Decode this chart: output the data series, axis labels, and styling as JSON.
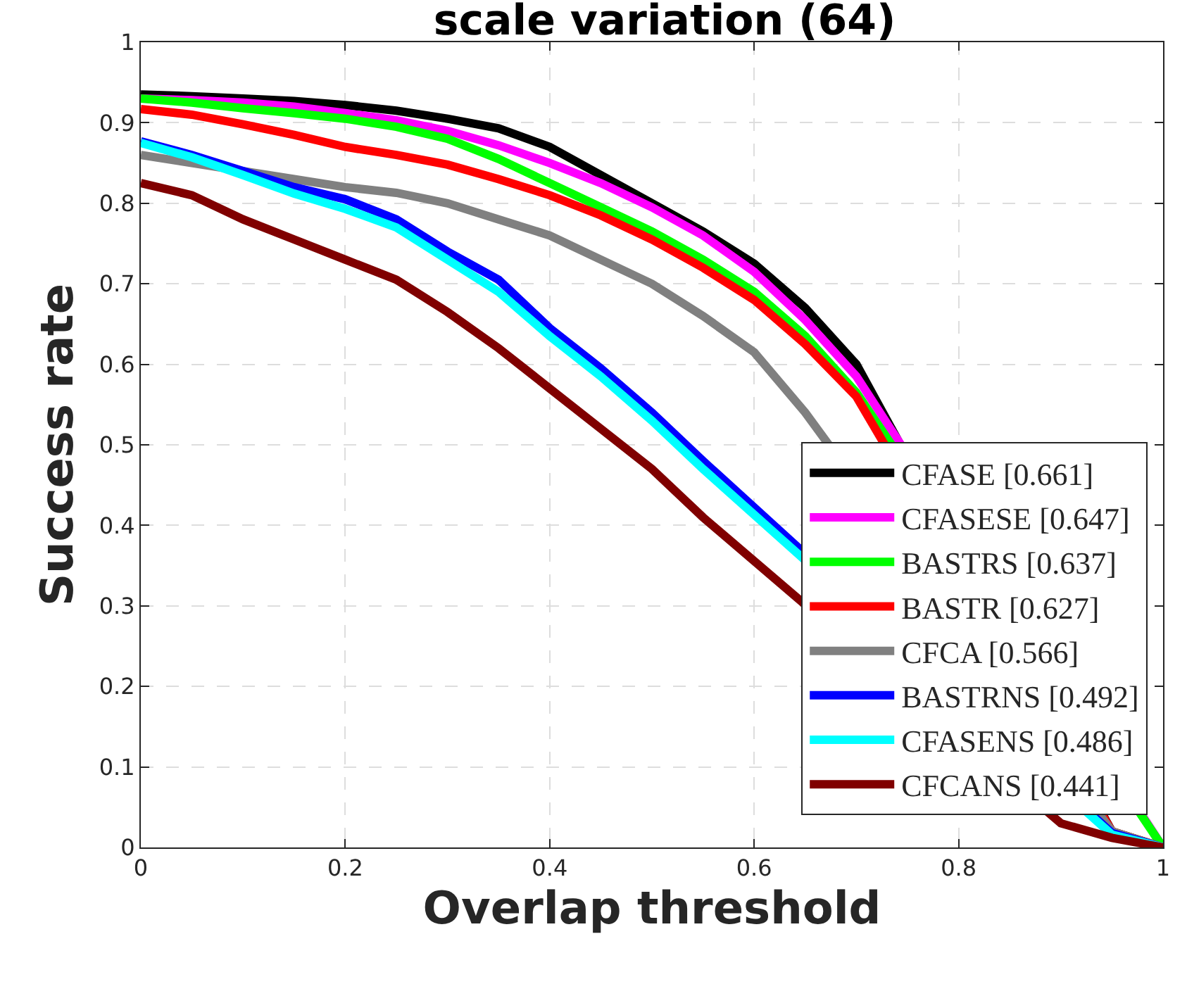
{
  "chart_data": {
    "type": "line",
    "title": "scale variation (64)",
    "xlabel": "Overlap threshold",
    "ylabel": "Success rate",
    "x": [
      0,
      0.05,
      0.1,
      0.15,
      0.2,
      0.25,
      0.3,
      0.35,
      0.4,
      0.45,
      0.5,
      0.55,
      0.6,
      0.65,
      0.7,
      0.75,
      0.8,
      0.85,
      0.9,
      0.95,
      1
    ],
    "xlim": [
      0,
      1
    ],
    "xticks": [
      0,
      0.2,
      0.4,
      0.6,
      0.8,
      1
    ],
    "ylim": [
      0,
      1
    ],
    "yticks": [
      0,
      0.1,
      0.2,
      0.3,
      0.4,
      0.5,
      0.6,
      0.7,
      0.8,
      0.9,
      1
    ],
    "grid": true,
    "legend": "bottom right",
    "marker": "none",
    "line_style": "solid",
    "series": [
      {
        "name": "CFASE [0.661]",
        "color": "#000000",
        "values": [
          0.935,
          0.933,
          0.93,
          0.927,
          0.922,
          0.915,
          0.905,
          0.893,
          0.87,
          0.835,
          0.8,
          0.765,
          0.725,
          0.67,
          0.6,
          null,
          null,
          null,
          null,
          0.02,
          0
        ]
      },
      {
        "name": "CFASESE [0.647]",
        "color": "#ff00ff",
        "values": [
          0.93,
          0.928,
          0.925,
          0.92,
          0.912,
          0.903,
          0.89,
          0.872,
          0.85,
          0.825,
          0.795,
          0.76,
          0.715,
          0.655,
          0.585,
          null,
          null,
          null,
          null,
          null,
          0
        ]
      },
      {
        "name": "BASTRS [0.637]",
        "color": "#00ff00",
        "values": [
          0.93,
          0.925,
          0.918,
          0.912,
          0.905,
          0.895,
          0.88,
          0.855,
          0.825,
          0.795,
          0.765,
          0.73,
          0.69,
          0.635,
          0.565,
          null,
          null,
          null,
          null,
          null,
          0
        ]
      },
      {
        "name": "BASTR [0.627]",
        "color": "#ff0000",
        "values": [
          0.917,
          0.91,
          0.898,
          0.885,
          0.87,
          0.86,
          0.848,
          0.83,
          0.81,
          0.785,
          0.755,
          0.72,
          0.68,
          0.625,
          0.56,
          null,
          null,
          null,
          null,
          0.02,
          0
        ]
      },
      {
        "name": "CFCA [0.566]",
        "color": "#808080",
        "values": [
          0.86,
          0.85,
          null,
          0.83,
          0.82,
          0.813,
          0.8,
          0.78,
          0.76,
          0.73,
          0.7,
          0.66,
          0.615,
          0.54,
          null,
          null,
          null,
          null,
          null,
          0.02,
          0
        ]
      },
      {
        "name": "BASTRNS [0.492]",
        "color": "#0000ff",
        "values": [
          0.877,
          0.86,
          0.84,
          0.82,
          0.805,
          0.78,
          0.74,
          0.705,
          0.645,
          0.595,
          0.54,
          0.48,
          null,
          null,
          null,
          null,
          null,
          null,
          null,
          0.018,
          0
        ]
      },
      {
        "name": "CFASENS [0.486]",
        "color": "#00ffff",
        "values": [
          0.875,
          0.857,
          0.835,
          0.812,
          0.793,
          0.77,
          0.73,
          0.69,
          0.635,
          0.585,
          0.53,
          0.47,
          null,
          null,
          null,
          null,
          null,
          null,
          null,
          0.016,
          0
        ]
      },
      {
        "name": "CFCANS [0.441]",
        "color": "#800000",
        "values": [
          0.825,
          0.81,
          0.78,
          0.755,
          0.73,
          0.705,
          0.665,
          0.62,
          0.57,
          0.52,
          0.47,
          0.41,
          null,
          null,
          null,
          null,
          null,
          null,
          0.03,
          0.012,
          0
        ]
      }
    ]
  }
}
